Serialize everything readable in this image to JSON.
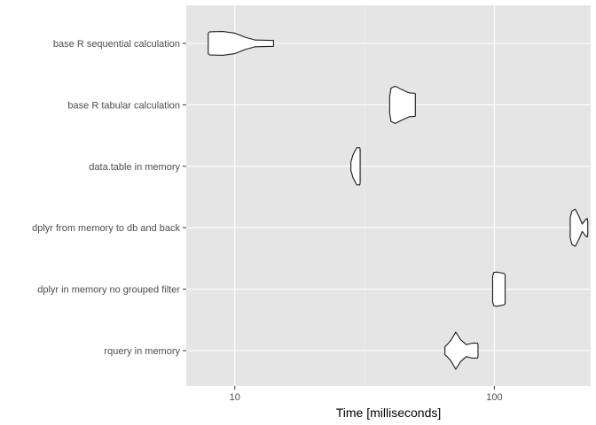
{
  "chart_data": {
    "type": "violin",
    "orientation": "horizontal",
    "xlabel": "Time [milliseconds]",
    "ylabel": "",
    "x_scale": "log10",
    "xlim": [
      6.5,
      235
    ],
    "x_ticks": [
      10,
      100
    ],
    "x_tick_labels": [
      "10",
      "100"
    ],
    "grid": true,
    "background": "#e5e5e5",
    "categories": [
      "base R sequential calculation",
      "base R tabular calculation",
      "data.table in memory",
      "dplyr from memory to db and back",
      "dplyr in memory no grouped filter",
      "rquery in memory"
    ],
    "violins": [
      {
        "category": "base R sequential calculation",
        "profile": [
          [
            7.9,
            0.55
          ],
          [
            8.0,
            0.62
          ],
          [
            9.0,
            0.64
          ],
          [
            10.0,
            0.55
          ],
          [
            11.0,
            0.32
          ],
          [
            12.0,
            0.18
          ],
          [
            14.1,
            0.16
          ]
        ]
      },
      {
        "category": "base R tabular calculation",
        "profile": [
          [
            39.5,
            0.45
          ],
          [
            40.0,
            0.9
          ],
          [
            41.5,
            1.0
          ],
          [
            44.0,
            0.82
          ],
          [
            47.0,
            0.64
          ],
          [
            49.5,
            0.62
          ],
          [
            49.6,
            0.58
          ]
        ]
      },
      {
        "category": "data.table in memory",
        "profile": [
          [
            28.0,
            0.22
          ],
          [
            28.5,
            0.6
          ],
          [
            29.5,
            1.0
          ],
          [
            30.3,
            1.0
          ],
          [
            30.4,
            0.9
          ]
        ]
      },
      {
        "category": "dplyr from memory to db and back",
        "profile": [
          [
            196,
            0.55
          ],
          [
            199,
            0.9
          ],
          [
            205,
            1.0
          ],
          [
            212,
            0.6
          ],
          [
            218,
            0.2
          ],
          [
            225,
            0.45
          ],
          [
            228,
            0.5
          ],
          [
            229,
            0.3
          ]
        ]
      },
      {
        "category": "dplyr in memory no grouped filter",
        "profile": [
          [
            98.5,
            0.7
          ],
          [
            99.5,
            0.9
          ],
          [
            102,
            0.92
          ],
          [
            106,
            0.88
          ],
          [
            109,
            0.84
          ],
          [
            110,
            0.78
          ]
        ]
      },
      {
        "category": "rquery in memory",
        "profile": [
          [
            64.5,
            0.22
          ],
          [
            65.5,
            0.3
          ],
          [
            68,
            0.55
          ],
          [
            71,
            1.0
          ],
          [
            74,
            0.6
          ],
          [
            78,
            0.32
          ],
          [
            82,
            0.4
          ],
          [
            86,
            0.4
          ],
          [
            86.5,
            0.32
          ]
        ]
      }
    ],
    "colors": {
      "panel": "#e5e5e5",
      "grid_major": "#ffffff",
      "grid_minor": "#f2f2f2",
      "violin_fill": "#ffffff",
      "violin_stroke": "#1a1a1a",
      "tick": "#333333",
      "tick_label": "#4d4d4d"
    }
  }
}
